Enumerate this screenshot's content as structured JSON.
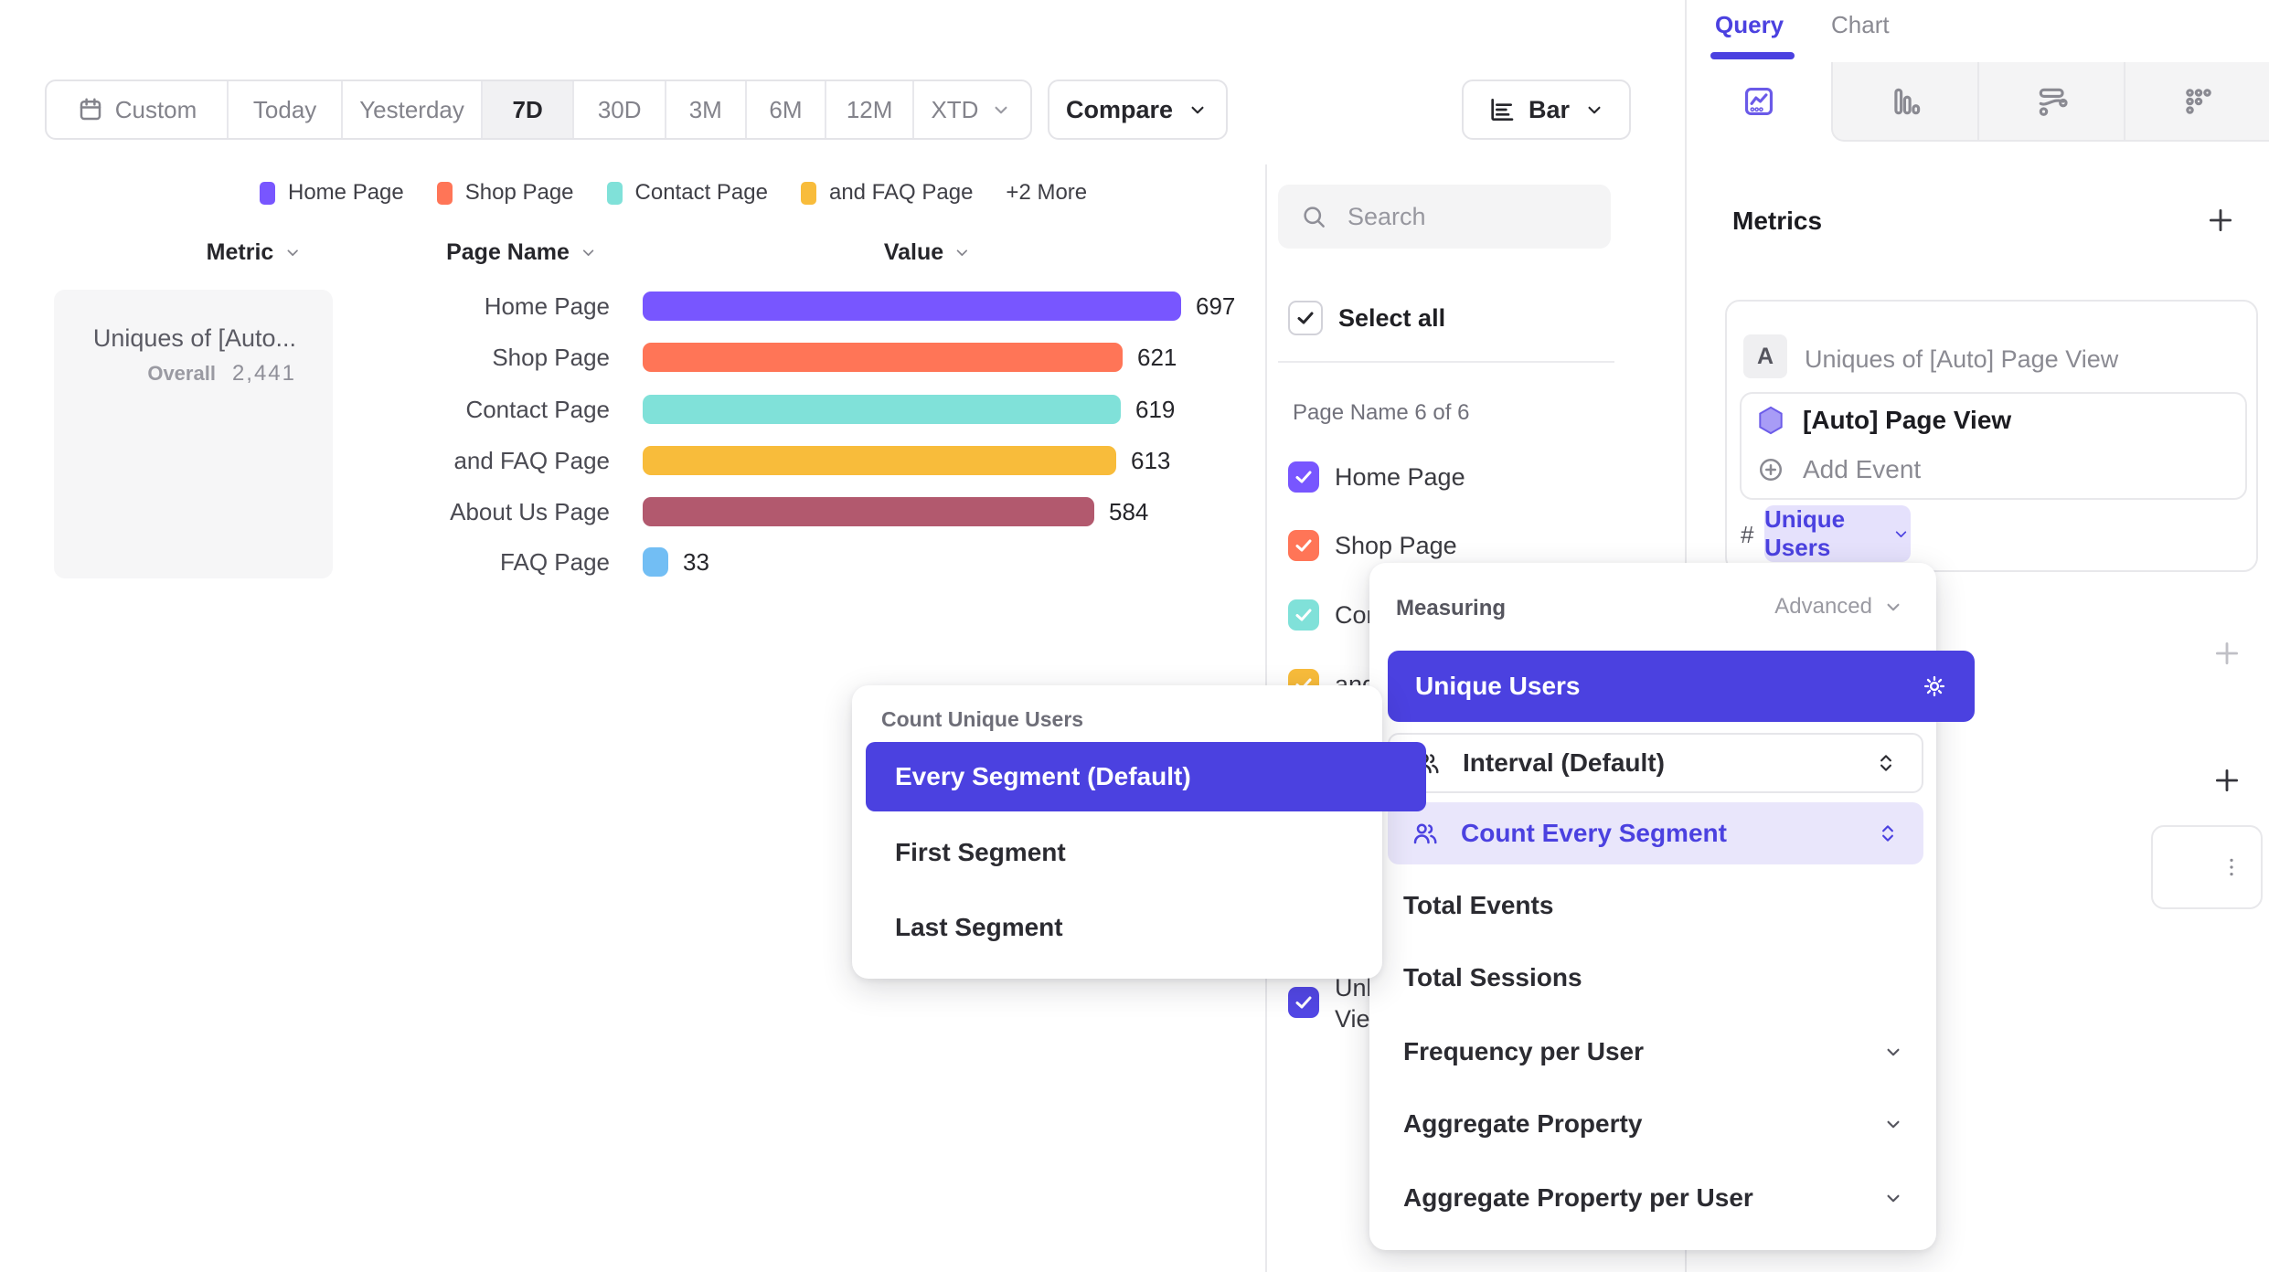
{
  "toolbar": {
    "date_ranges": [
      "Custom",
      "Today",
      "Yesterday",
      "7D",
      "30D",
      "3M",
      "6M",
      "12M",
      "XTD"
    ],
    "active_range": "7D",
    "compare_label": "Compare",
    "chart_type_label": "Bar"
  },
  "legend": {
    "items": [
      {
        "label": "Home Page",
        "color": "#7856FF"
      },
      {
        "label": "Shop Page",
        "color": "#FF7557"
      },
      {
        "label": "Contact Page",
        "color": "#80E1D9"
      },
      {
        "label": "and FAQ Page",
        "color": "#F8BC3B"
      }
    ],
    "more_label": "+2 More"
  },
  "table": {
    "headers": [
      "Metric",
      "Page Name",
      "Value"
    ]
  },
  "metric_summary": {
    "title": "Uniques of [Auto...",
    "overall_label": "Overall",
    "overall_value": "2,441"
  },
  "chart_data": {
    "type": "bar",
    "orientation": "horizontal",
    "title": "Uniques of [Auto] Page View",
    "categories": [
      "Home Page",
      "Shop Page",
      "Contact Page",
      "and FAQ Page",
      "About Us Page",
      "FAQ Page"
    ],
    "values": [
      697,
      621,
      619,
      613,
      584,
      33
    ],
    "colors": [
      "#7856FF",
      "#FF7557",
      "#80E1D9",
      "#F8BC3B",
      "#B2596E",
      "#72BEF4"
    ],
    "overall": 2441,
    "xlabel": "Value",
    "ylabel": "Page Name",
    "xlim": [
      0,
      740
    ],
    "grid": false,
    "legend_position": "top"
  },
  "segment_panel": {
    "search_placeholder": "Search",
    "select_all_label": "Select all",
    "group_label": "Page Name 6 of 6",
    "items": [
      {
        "label": "Home Page",
        "color": "#7856FF"
      },
      {
        "label": "Shop Page",
        "color": "#FF7557"
      },
      {
        "label": "Contact Page",
        "color": "#80E1D9"
      },
      {
        "label": "and FAQ Page",
        "color": "#F8BC3B"
      },
      {
        "label": "About Us Page",
        "color": "#B2596E"
      },
      {
        "label": "FAQ Page",
        "color": "#72BEF4"
      }
    ],
    "extra_item": {
      "label_line1": "Unl",
      "label_line2": "Vie",
      "color": "#5247E5"
    }
  },
  "count_menu": {
    "title": "Count Unique Users",
    "selected": "Every Segment (Default)",
    "options": [
      "First Segment",
      "Last Segment"
    ]
  },
  "measuring_menu": {
    "title": "Measuring",
    "advanced_label": "Advanced",
    "selected": "Unique Users",
    "interval_label": "Interval (Default)",
    "segment_label": "Count Every Segment",
    "options": [
      "Total Events",
      "Total Sessions"
    ],
    "expandable_options": [
      "Frequency per User",
      "Aggregate Property",
      "Aggregate Property per User"
    ]
  },
  "query_panel": {
    "tabs": [
      "Query",
      "Chart"
    ],
    "active_tab": "Query",
    "metrics_label": "Metrics",
    "add_metric_label": "+",
    "metric_card": {
      "badge": "A",
      "title": "Uniques of [Auto] Page View",
      "event_name": "[Auto] Page View",
      "add_event_label": "Add Event",
      "measure_prefix": "#",
      "measure_label": "Unique Users"
    }
  },
  "colors": {
    "accent": "#4B41E0",
    "accent_light_bg": "#E5E1FC",
    "panel_border": "#E8E8EB",
    "muted_text": "#8A8A92"
  }
}
